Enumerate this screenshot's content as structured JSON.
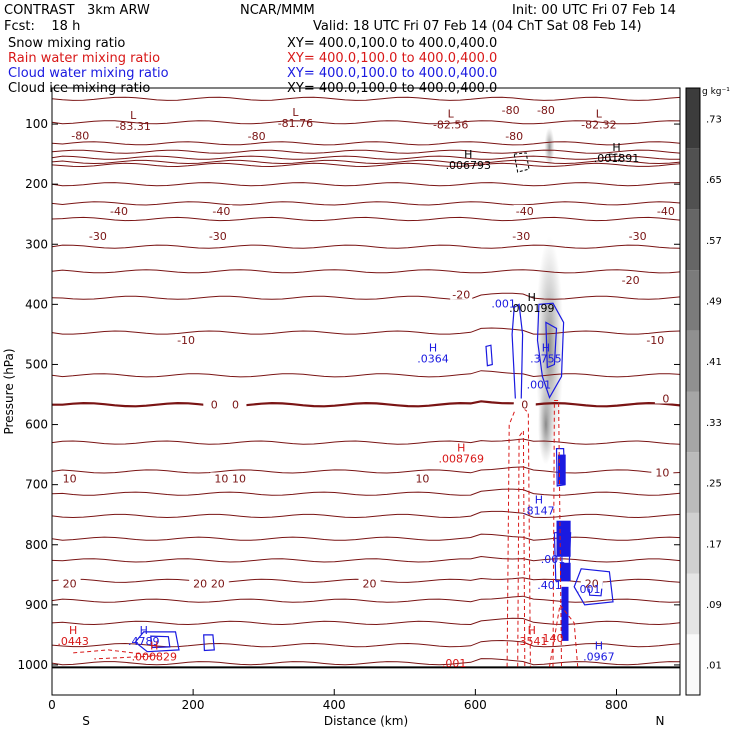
{
  "header": {
    "model": "CONTRAST   3km ARW",
    "center": "NCAR/MMM",
    "init": "Init: 00 UTC Fri 07 Feb 14",
    "fcst": "Fcst:    18 h",
    "valid": "Valid: 18 UTC Fri 07 Feb 14 (04 ChT Sat 08 Feb 14)",
    "fields": [
      {
        "name": "Snow mixing ratio",
        "xy": "XY= 400.0,100.0 to 400.0,400.0",
        "color": "#000000"
      },
      {
        "name": "Rain water mixing ratio",
        "xy": "XY= 400.0,100.0 to 400.0,400.0",
        "color": "#d81818"
      },
      {
        "name": "Cloud water mixing ratio",
        "xy": "XY= 400.0,100.0 to 400.0,400.0",
        "color": "#1a1ae0"
      },
      {
        "name": "Cloud ice mixing ratio",
        "xy": "XY= 400.0,100.0 to 400.0,400.0",
        "color": "#000000"
      }
    ]
  },
  "chart_data": {
    "type": "cross-section",
    "xlabel": "Distance (km)",
    "ylabel": "Pressure (hPa)",
    "xlim": [
      0,
      890
    ],
    "ylim": [
      1050,
      40
    ],
    "x_ticks": [
      0,
      200,
      400,
      600,
      800
    ],
    "y_ticks": [
      100,
      200,
      300,
      400,
      500,
      600,
      700,
      800,
      900,
      1000
    ],
    "end_labels": {
      "left": "S",
      "right": "N"
    },
    "colorbar": {
      "unit": "g kg⁻¹",
      "ticks": [
        ".01",
        ".09",
        ".17",
        ".25",
        ".33",
        ".41",
        ".49",
        ".57",
        ".65",
        ".73"
      ],
      "min": 0.01,
      "max": 0.81
    },
    "temperature_labels": [
      {
        "text": "-80",
        "x": 40,
        "p": 122
      },
      {
        "text": "-80",
        "x": 290,
        "p": 123
      },
      {
        "text": "-80",
        "x": 655,
        "p": 123
      },
      {
        "text": "-80",
        "x": 650,
        "p": 80
      },
      {
        "text": "-80",
        "x": 700,
        "p": 80
      },
      {
        "text": "-40",
        "x": 95,
        "p": 248
      },
      {
        "text": "-40",
        "x": 240,
        "p": 248
      },
      {
        "text": "-40",
        "x": 670,
        "p": 248
      },
      {
        "text": "-40",
        "x": 870,
        "p": 248
      },
      {
        "text": "-30",
        "x": 65,
        "p": 290
      },
      {
        "text": "-30",
        "x": 235,
        "p": 290
      },
      {
        "text": "-30",
        "x": 665,
        "p": 290
      },
      {
        "text": "-30",
        "x": 830,
        "p": 290
      },
      {
        "text": "-20",
        "x": 580,
        "p": 387
      },
      {
        "text": "-20",
        "x": 820,
        "p": 363
      },
      {
        "text": "-10",
        "x": 190,
        "p": 463
      },
      {
        "text": "-10",
        "x": 855,
        "p": 463
      },
      {
        "text": "0",
        "x": 230,
        "p": 570
      },
      {
        "text": "0",
        "x": 260,
        "p": 570
      },
      {
        "text": "0",
        "x": 670,
        "p": 570
      },
      {
        "text": "0",
        "x": 870,
        "p": 560
      },
      {
        "text": "10",
        "x": 25,
        "p": 693
      },
      {
        "text": "10",
        "x": 240,
        "p": 693
      },
      {
        "text": "10",
        "x": 265,
        "p": 693
      },
      {
        "text": "10",
        "x": 525,
        "p": 693
      },
      {
        "text": "10",
        "x": 865,
        "p": 683
      },
      {
        "text": "20",
        "x": 25,
        "p": 868
      },
      {
        "text": "20",
        "x": 210,
        "p": 868
      },
      {
        "text": "20",
        "x": 235,
        "p": 868
      },
      {
        "text": "20",
        "x": 450,
        "p": 868
      },
      {
        "text": "20",
        "x": 765,
        "p": 868
      }
    ],
    "extrema_labels": [
      {
        "mark": "L",
        "value": "-83.31",
        "x": 115,
        "p": 105,
        "color": "#7a1414"
      },
      {
        "mark": "L",
        "value": "-81.76",
        "x": 345,
        "p": 100,
        "color": "#7a1414"
      },
      {
        "mark": "L",
        "value": "-82.56",
        "x": 565,
        "p": 102,
        "color": "#7a1414"
      },
      {
        "mark": "L",
        "value": "-82.32",
        "x": 775,
        "p": 102,
        "color": "#7a1414"
      },
      {
        "mark": "H",
        "value": ".006793",
        "x": 590,
        "p": 170,
        "color": "#000000"
      },
      {
        "mark": "H",
        "value": ".001891",
        "x": 800,
        "p": 158,
        "color": "#000000"
      },
      {
        "mark": "H",
        "value": ".000199",
        "x": 680,
        "p": 408,
        "color": "#000000"
      },
      {
        "mark": "H",
        "value": ".0364",
        "x": 540,
        "p": 492,
        "color": "#1a1ae0"
      },
      {
        "mark": "H",
        "value": ".3755",
        "x": 700,
        "p": 492,
        "color": "#1a1ae0"
      },
      {
        "mark": "H",
        "value": ".008769",
        "x": 580,
        "p": 658,
        "color": "#d81818"
      },
      {
        "mark": "H",
        "value": ".8147",
        "x": 690,
        "p": 745,
        "color": "#1a1ae0"
      },
      {
        "mark": "H",
        "value": ".0443",
        "x": 30,
        "p": 962,
        "color": "#d81818"
      },
      {
        "mark": "H",
        "value": ".4789",
        "x": 130,
        "p": 962,
        "color": "#1a1ae0"
      },
      {
        "mark": "H",
        "value": ".000829",
        "x": 145,
        "p": 988,
        "color": "#d81818"
      },
      {
        "mark": "H",
        "value": ".3541",
        "x": 680,
        "p": 962,
        "color": "#d81818"
      },
      {
        "mark": "H",
        "value": ".0967",
        "x": 775,
        "p": 988,
        "color": "#1a1ae0"
      }
    ],
    "contour_value_labels": [
      {
        "text": ".001",
        "x": 640,
        "p": 405,
        "color": "#1a1ae0"
      },
      {
        "text": ".001",
        "x": 690,
        "p": 540,
        "color": "#1a1ae0"
      },
      {
        "text": ".001",
        "x": 710,
        "p": 830,
        "color": "#1a1ae0"
      },
      {
        "text": ".001",
        "x": 760,
        "p": 880,
        "color": "#1a1ae0"
      },
      {
        "text": ".401",
        "x": 705,
        "p": 874,
        "color": "#1a1ae0"
      },
      {
        "text": ".001",
        "x": 570,
        "p": 1003,
        "color": "#d81818"
      },
      {
        "text": "140",
        "x": 710,
        "p": 962,
        "color": "#d81818"
      }
    ]
  }
}
